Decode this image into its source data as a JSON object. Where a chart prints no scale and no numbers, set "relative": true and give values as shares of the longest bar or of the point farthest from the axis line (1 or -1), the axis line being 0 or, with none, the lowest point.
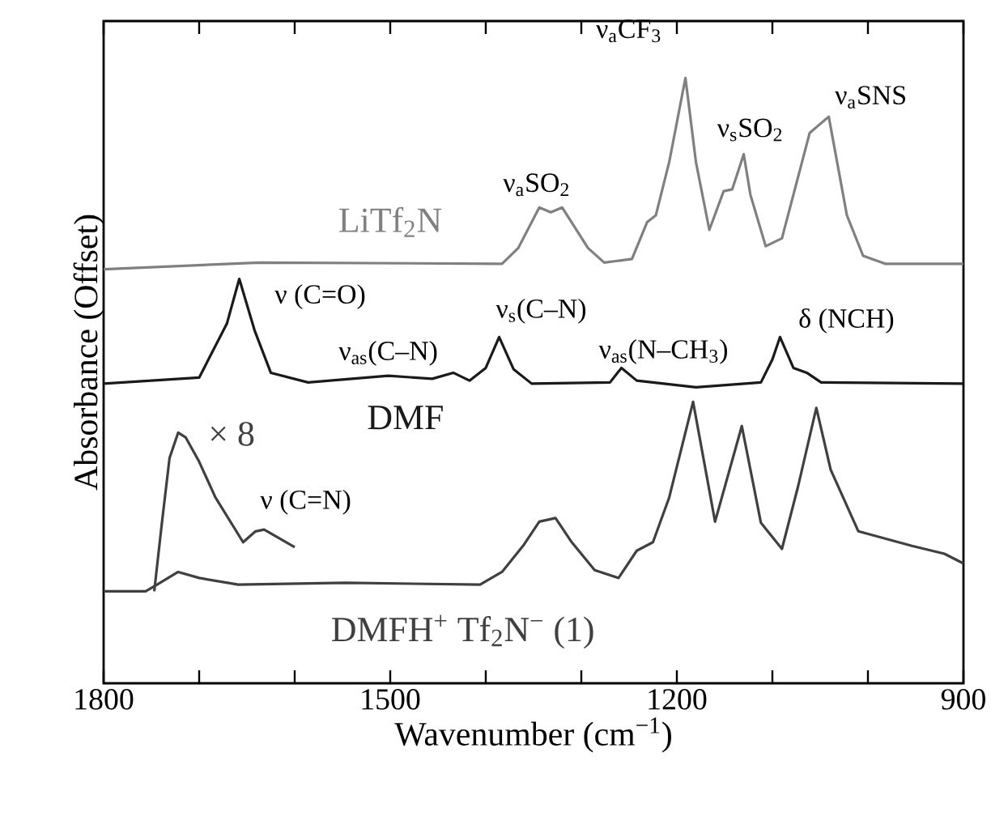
{
  "chart_data": {
    "type": "line",
    "relative": true,
    "xlabel": "Wavenumber (cm$^{−1}$)",
    "ylabel": "Absorbance (Offset)",
    "xlim": [
      1800,
      900
    ],
    "xticks": [
      1800,
      {
        "value": 1700,
        "label": null
      },
      {
        "value": 1600,
        "label": null
      },
      1500,
      {
        "value": 1400,
        "label": null
      },
      {
        "value": 1300,
        "label": null
      },
      1200,
      {
        "value": 1100,
        "label": null
      },
      {
        "value": 1000,
        "label": null
      },
      900
    ],
    "series": [
      {
        "name": "LiTf$_{2}$N",
        "color": "#808080",
        "x": [
          1800,
          1637,
          1383,
          1366,
          1344,
          1332,
          1320,
          1293,
          1276,
          1247,
          1231,
          1222,
          1208,
          1191,
          1180,
          1166,
          1151,
          1142,
          1130,
          1123,
          1107,
          1090,
          1061,
          1053,
          1041,
          1022,
          1005,
          982,
          900
        ],
        "values": [
          0.684,
          0.695,
          0.693,
          0.719,
          0.786,
          0.778,
          0.786,
          0.719,
          0.695,
          0.701,
          0.762,
          0.773,
          0.861,
          1,
          0.861,
          0.749,
          0.813,
          0.816,
          0.874,
          0.807,
          0.722,
          0.735,
          0.909,
          0.92,
          0.936,
          0.773,
          0.706,
          0.693,
          0.693
        ]
      },
      {
        "name": "DMF",
        "color": "#1a1a1a",
        "x": [
          1800,
          1700,
          1671,
          1658,
          1642,
          1625,
          1586,
          1502,
          1456,
          1434,
          1417,
          1400,
          1386,
          1371,
          1352,
          1270,
          1258,
          1242,
          1180,
          1112,
          1100,
          1092,
          1078,
          1064,
          1049,
          900
        ],
        "values": [
          0.495,
          0.505,
          0.594,
          0.668,
          0.583,
          0.513,
          0.497,
          0.508,
          0.503,
          0.513,
          0.5,
          0.521,
          0.572,
          0.519,
          0.495,
          0.497,
          0.521,
          0.5,
          0.489,
          0.497,
          0.535,
          0.572,
          0.521,
          0.513,
          0.497,
          0.495
        ]
      },
      {
        "name": "× 8",
        "color": "#404040",
        "x": [
          1747,
          1739,
          1731,
          1722,
          1714,
          1700,
          1683,
          1654,
          1641,
          1632,
          1600
        ],
        "values": [
          0.152,
          0.265,
          0.372,
          0.414,
          0.406,
          0.366,
          0.307,
          0.233,
          0.251,
          0.254,
          0.225
        ]
      },
      {
        "name": "DMFH$^{+}$ Tf$_{2}$N$^{−}$ (1)",
        "color": "#404040",
        "x": [
          1800,
          1756,
          1744,
          1722,
          1700,
          1659,
          1547,
          1406,
          1383,
          1361,
          1344,
          1327,
          1310,
          1286,
          1261,
          1242,
          1225,
          1208,
          1183,
          1160,
          1132,
          1112,
          1090,
          1073,
          1054,
          1039,
          1010,
          954,
          920,
          900
        ],
        "values": [
          0.152,
          0.152,
          0.163,
          0.184,
          0.174,
          0.163,
          0.166,
          0.163,
          0.184,
          0.227,
          0.267,
          0.273,
          0.233,
          0.187,
          0.174,
          0.219,
          0.233,
          0.307,
          0.465,
          0.267,
          0.425,
          0.265,
          0.222,
          0.326,
          0.455,
          0.353,
          0.251,
          0.227,
          0.214,
          0.198
        ]
      }
    ],
    "annotations": [
      {
        "text": "ν$_{a}$SO$_{2}$",
        "x": 1340,
        "y": 0.786
      },
      {
        "text": "ν$_{a}$CF$_{3}$",
        "x": 1191,
        "y": 1
      },
      {
        "text": "ν$_{s}$SO$_{2}$",
        "x": 1130,
        "y": 0.874
      },
      {
        "text": "ν$_{a}$SNS",
        "x": 1041,
        "y": 0.936
      },
      {
        "text": "ν (C=O)",
        "x": 1658,
        "y": 0.668
      },
      {
        "text": "ν$_{as}$(C–N)",
        "x": 1480,
        "y": 0.505
      },
      {
        "text": "ν$_{s}$(C–N)",
        "x": 1386,
        "y": 0.572
      },
      {
        "text": "ν$_{as}$(N–CH$_{3}$)",
        "x": 1258,
        "y": 0.521
      },
      {
        "text": "δ (NCH)",
        "x": 1092,
        "y": 0.572
      },
      {
        "text": "ν (C=N)",
        "x": 1641,
        "y": 0.251
      }
    ]
  }
}
